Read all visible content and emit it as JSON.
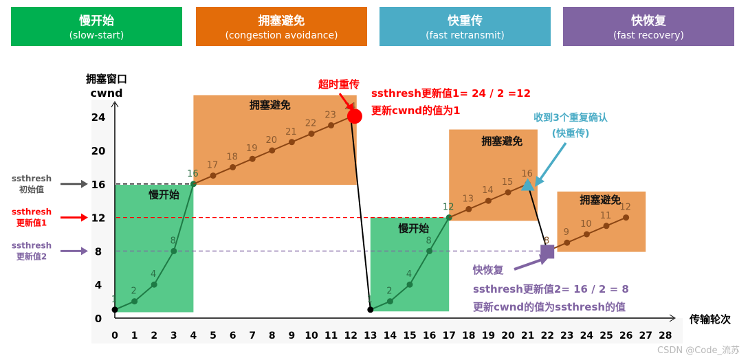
{
  "phases": [
    {
      "zh": "慢开始",
      "en": "(slow-start)",
      "color": "#00b050"
    },
    {
      "zh": "拥塞避免",
      "en": "(congestion avoidance)",
      "color": "#e36c09"
    },
    {
      "zh": "快重传",
      "en": "(fast retransmit)",
      "color": "#4bacc6"
    },
    {
      "zh": "快恢复",
      "en": "(fast recovery)",
      "color": "#8064a2"
    }
  ],
  "region_labels": {
    "slow_start": "慢开始",
    "cong_avoid": "拥塞避免"
  },
  "annotations": {
    "timeout": "超时重传",
    "update1_line1": "ssthresh更新值1= 24 / 2 =12",
    "update1_line2": "更新cwnd的值为1",
    "dup_ack_line1": "收到3个重复确认",
    "dup_ack_line2": "(快重传)",
    "fast_recovery": "快恢复",
    "update2_line1": "ssthresh更新值2= 16 / 2 = 8",
    "update2_line2": "更新cwnd的值为ssthresh的值"
  },
  "thresholds": [
    {
      "label1": "ssthresh",
      "label2": "初始值",
      "value": 16,
      "color": "#595959"
    },
    {
      "label1": "ssthresh",
      "label2": "更新值1",
      "value": 12,
      "color": "#ff0000"
    },
    {
      "label1": "ssthresh",
      "label2": "更新值2",
      "value": 8,
      "color": "#8064a2"
    }
  ],
  "watermark": "CSDN @Code_流苏",
  "chart_data": {
    "type": "line",
    "ylabel_line1": "拥塞窗口",
    "ylabel_line2": "cwnd",
    "xlabel": "传输轮次",
    "xlim": [
      0,
      28
    ],
    "ylim": [
      0,
      26
    ],
    "yticks": [
      0,
      4,
      8,
      12,
      16,
      20,
      24
    ],
    "xticks": [
      0,
      1,
      2,
      3,
      4,
      5,
      6,
      7,
      8,
      9,
      10,
      11,
      12,
      13,
      14,
      15,
      16,
      17,
      18,
      19,
      20,
      21,
      22,
      23,
      24,
      25,
      26,
      27,
      28
    ],
    "segments": [
      {
        "phase": "slow-start",
        "color": "#1e7a45",
        "x": [
          0,
          1,
          2,
          3,
          4
        ],
        "y": [
          1,
          2,
          4,
          8,
          16
        ]
      },
      {
        "phase": "congestion-avoidance",
        "color": "#8b4513",
        "x": [
          4,
          5,
          6,
          7,
          8,
          9,
          10,
          11,
          12
        ],
        "y": [
          16,
          17,
          18,
          19,
          20,
          21,
          22,
          23,
          24
        ]
      },
      {
        "phase": "timeout-drop",
        "color": "#000000",
        "x": [
          12,
          13
        ],
        "y": [
          24,
          1
        ]
      },
      {
        "phase": "slow-start",
        "color": "#1e7a45",
        "x": [
          13,
          14,
          15,
          16,
          17
        ],
        "y": [
          1,
          2,
          4,
          8,
          12
        ]
      },
      {
        "phase": "congestion-avoidance",
        "color": "#8b4513",
        "x": [
          17,
          18,
          19,
          20,
          21
        ],
        "y": [
          12,
          13,
          14,
          15,
          16
        ]
      },
      {
        "phase": "fast-recovery-drop",
        "color": "#000000",
        "x": [
          21,
          22
        ],
        "y": [
          16,
          8
        ]
      },
      {
        "phase": "congestion-avoidance",
        "color": "#8b4513",
        "x": [
          22,
          23,
          24,
          25,
          26
        ],
        "y": [
          8,
          9,
          10,
          11,
          12
        ]
      }
    ]
  }
}
